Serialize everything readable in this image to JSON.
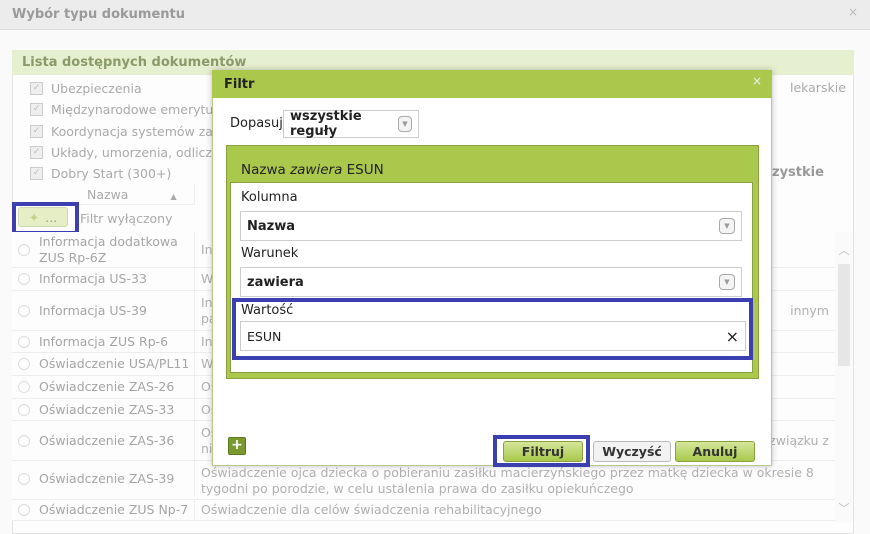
{
  "outer": {
    "title": "Wybór typu dokumentu",
    "close": "×"
  },
  "panel": {
    "title": "Lista dostępnych dokumentów",
    "categories": [
      "Ubezpieczenia",
      "Międzynarodowe emerytury,",
      "Koordynacja systemów zabe",
      "Układy, umorzenia, odliczen",
      "Dobry Start (300+)"
    ],
    "right_fragments": {
      "category": "lekarskie",
      "all": "zystkie"
    },
    "column_name": "Nazwa",
    "filter_button": "...",
    "filter_status": "Filtr wyłączony",
    "rows": [
      {
        "name": "Informacja dodatkowa ZUS Rp-6Z",
        "desc": "In",
        "desc_right": ""
      },
      {
        "name": "Informacja US-33",
        "desc": "W",
        "desc_right": ""
      },
      {
        "name": "Informacja US-39",
        "desc": "In pa",
        "desc_right": "innym"
      },
      {
        "name": "Informacja ZUS Rp-6",
        "desc": "In",
        "desc_right": ""
      },
      {
        "name": "Oświadczenie USA/PL11",
        "desc": "W",
        "desc_right": ""
      },
      {
        "name": "Oświadczenie ZAS-26",
        "desc": "Oś",
        "desc_right": ""
      },
      {
        "name": "Oświadczenie ZAS-33",
        "desc": "Oś",
        "desc_right": ""
      },
      {
        "name": "Oświadczenie ZAS-36",
        "desc": "Oś ni",
        "desc_right": "związku z"
      },
      {
        "name": "Oświadczenie ZAS-39",
        "desc": "Oświadczenie ojca dziecka o pobieraniu zasiłku macierzyńskiego przez matkę dziecka w okresie 8 tygodni po porodzie, w celu ustalenia prawa do zasiłku opiekuńczego",
        "desc_right": ""
      },
      {
        "name": "Oświadczenie ZUS Np-7",
        "desc": "Oświadczenie dla celów świadczenia rehabilitacyjnego",
        "desc_right": ""
      }
    ]
  },
  "filter": {
    "title": "Filtr",
    "close": "×",
    "match_label": "Dopasuj",
    "match_value": "wszystkie reguły",
    "rule": {
      "column": "Nazwa",
      "operator": "zawiera",
      "value": "ESUN"
    },
    "column_label": "Kolumna",
    "column_value": "Nazwa",
    "condition_label": "Warunek",
    "condition_value": "zawiera",
    "value_label": "Wartość",
    "value": "ESUN",
    "clear_icon": "×",
    "add": "+",
    "buttons": {
      "filter": "Filtruj",
      "clear": "Wyczyść",
      "cancel": "Anuluj"
    }
  },
  "colors": {
    "accent": "#a9c84c",
    "highlight": "#3b3fb0"
  }
}
